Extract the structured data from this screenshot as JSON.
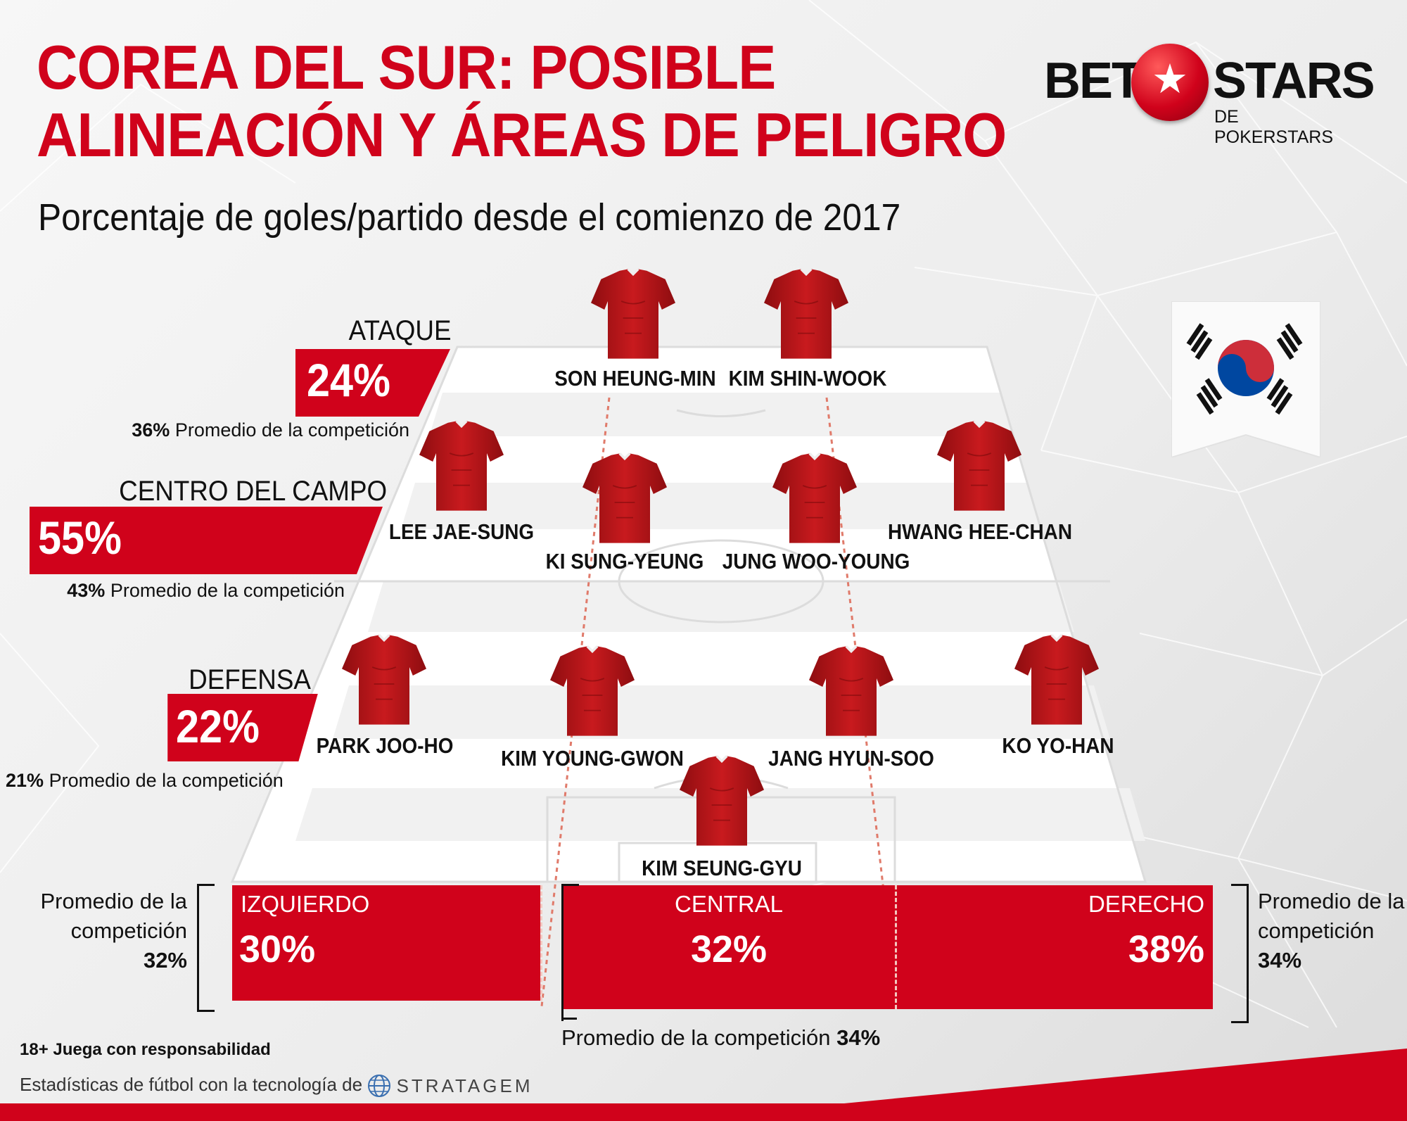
{
  "header": {
    "title_line1": "COREA DEL SUR: POSIBLE",
    "title_line2": "ALINEACIÓN Y ÁREAS DE PELIGRO",
    "subtitle": "Porcentaje de goles/partido desde el comienzo de 2017"
  },
  "logo": {
    "part1": "BET",
    "part2": "STARS",
    "sub": "DE POKERSTARS",
    "ball_icon": "soccer-ball-icon",
    "star_glyph": "★"
  },
  "flag_icon": "south-korea-flag-icon",
  "jersey_icon": "red-jersey-icon",
  "colors": {
    "brand_red": "#d0021b",
    "text": "#111111"
  },
  "sections": {
    "attack": {
      "label": "ATAQUE",
      "pct": "24%",
      "avg_value": "36%",
      "avg_text": "Promedio de la competición"
    },
    "midfield": {
      "label": "CENTRO DEL CAMPO",
      "pct": "55%",
      "avg_value": "43%",
      "avg_text": "Promedio de la competición"
    },
    "defense": {
      "label": "DEFENSA",
      "pct": "22%",
      "avg_value": "21%",
      "avg_text": "Promedio de la competición"
    }
  },
  "players": [
    "SON HEUNG-MIN",
    "KIM SHIN-WOOK",
    "LEE JAE-SUNG",
    "KI SUNG-YEUNG",
    "JUNG WOO-YOUNG",
    "HWANG HEE-CHAN",
    "PARK JOO-HO",
    "KIM YOUNG-GWON",
    "JANG HYUN-SOO",
    "KO YO-HAN",
    "KIM SEUNG-GYU"
  ],
  "sides": {
    "left": {
      "label": "IZQUIERDO",
      "pct": "30%",
      "avg_line1": "Promedio de la",
      "avg_line2": "competición",
      "avg_value": "32%"
    },
    "center": {
      "label": "CENTRAL",
      "pct": "32%",
      "avg_text": "Promedio de la competición",
      "avg_value": "34%"
    },
    "right": {
      "label": "DERECHO",
      "pct": "38%",
      "avg_line1": "Promedio de la",
      "avg_line2": "competición",
      "avg_value": "34%"
    }
  },
  "footer": {
    "responsible": "18+ Juega con responsabilidad",
    "tech": "Estadísticas de fútbol con la tecnología de",
    "stratagem": "STRATAGEM",
    "globe_icon": "globe-icon"
  }
}
